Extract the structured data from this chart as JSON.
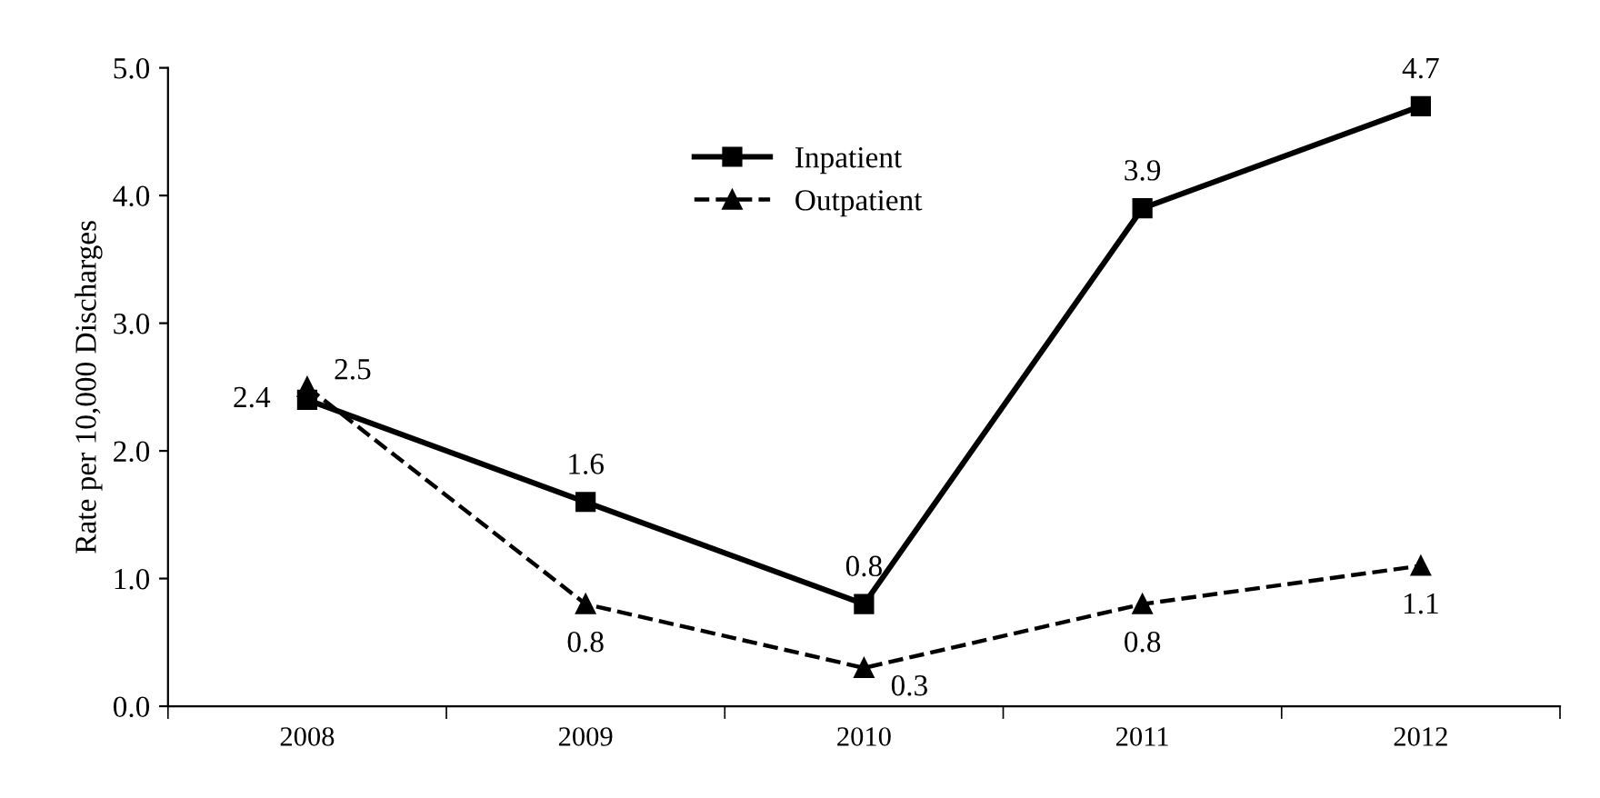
{
  "chart_data": {
    "type": "line",
    "ylabel": "Rate per 10,000 Discharges",
    "categories": [
      "2008",
      "2009",
      "2010",
      "2011",
      "2012"
    ],
    "series": [
      {
        "name": "Inpatient",
        "color": "#000000",
        "values": [
          2.4,
          1.6,
          0.8,
          3.9,
          4.7
        ],
        "marker": "square",
        "line_style": "solid"
      },
      {
        "name": "Outpatient",
        "color": "#000000",
        "values": [
          2.5,
          0.8,
          0.3,
          0.8,
          1.1
        ],
        "marker": "triangle",
        "line_style": "dashed"
      }
    ],
    "ylim": [
      0,
      5
    ],
    "yticks": [
      {
        "value": 0,
        "label": "0.0"
      },
      {
        "value": 1,
        "label": "1.0"
      },
      {
        "value": 2,
        "label": "2.0"
      },
      {
        "value": 3,
        "label": "3.0"
      },
      {
        "value": 4,
        "label": "4.0"
      },
      {
        "value": 5,
        "label": "5.0"
      }
    ],
    "data_labels": true,
    "legend": "top",
    "grid": false
  }
}
